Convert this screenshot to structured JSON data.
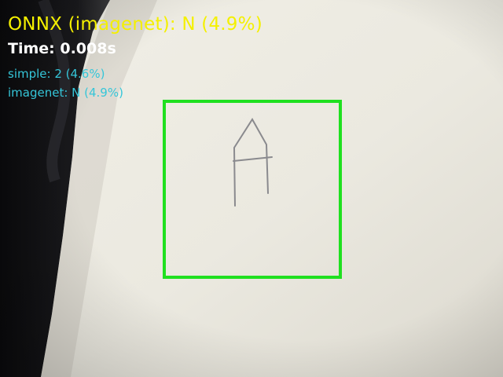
{
  "overlay": {
    "prediction_label": "ONNX (imagenet): N (4.9%)",
    "time_label": "Time: 0.008s",
    "models": [
      {
        "label": "simple: 2 (4.6%)"
      },
      {
        "label": "imagenet: N (4.9%)"
      }
    ]
  },
  "colors": {
    "prediction": "#f4f000",
    "time": "#ffffff",
    "model_list": "#35c6d9",
    "detection_box": "#1fe01f"
  }
}
